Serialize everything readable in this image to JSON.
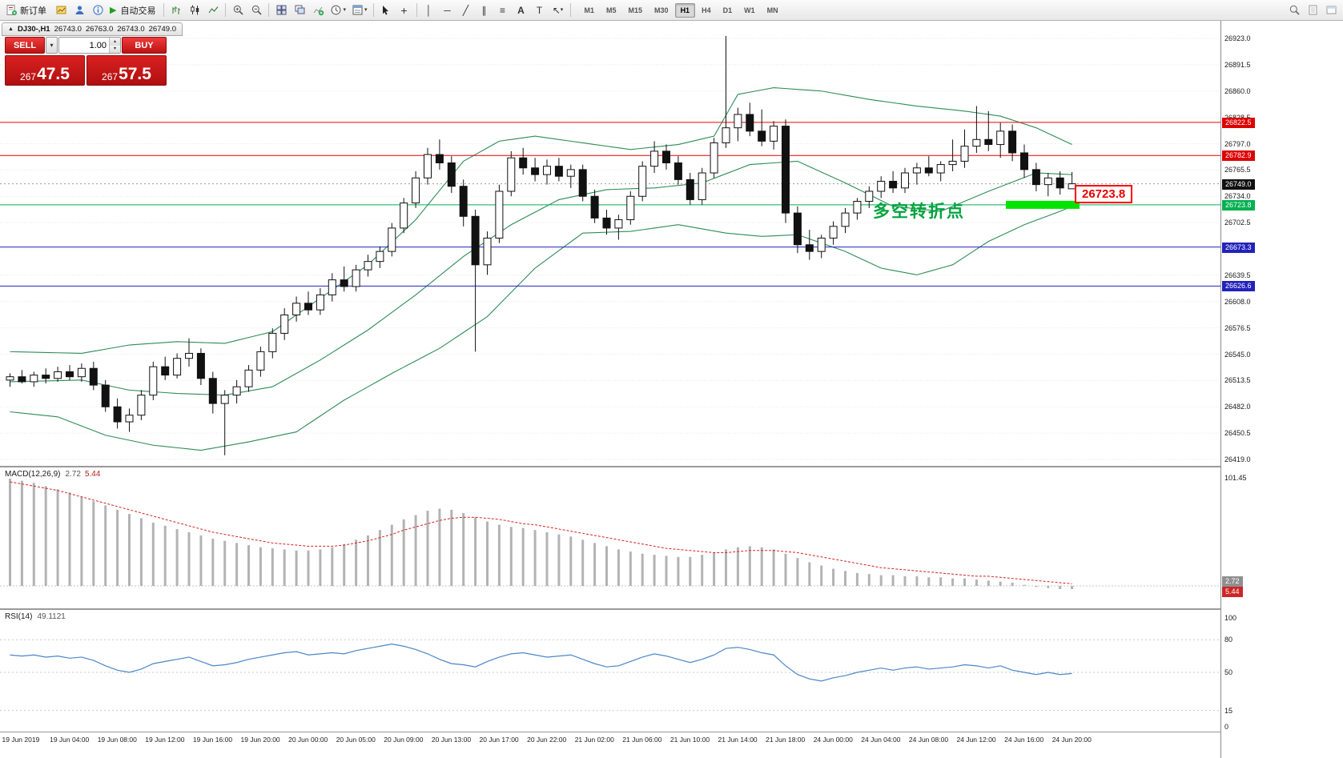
{
  "icons": {
    "play": "▶",
    "caret_down": "▾",
    "caret_up": "▴",
    "collapse": "▲",
    "crosshair": "+",
    "vline": "│",
    "hline": "─",
    "trendline": "╱",
    "channel": "∥",
    "fibonacci": "≡",
    "text_tool": "A",
    "label_tool": "T",
    "arrow_tool": "↖"
  },
  "toolbar": {
    "new_order": "新订单",
    "auto_trading": "自动交易",
    "timeframes": [
      "M1",
      "M5",
      "M15",
      "M30",
      "H1",
      "H4",
      "D1",
      "W1",
      "MN"
    ],
    "active_timeframe": "H1"
  },
  "chart": {
    "tab": "DJ30-,H1",
    "open": "26743.0",
    "high": "26763.0",
    "low": "26743.0",
    "close": "26749.0"
  },
  "trade": {
    "sell": "SELL",
    "buy": "BUY",
    "volume": "1.00",
    "sell_price": "26747.5",
    "buy_price": "26757.5"
  },
  "annotation": {
    "text": "多空转折点",
    "callout": "26723.8",
    "price": 26723.8
  },
  "levels": [
    {
      "price": 26822.5,
      "color": "#ee0000",
      "style": "solid"
    },
    {
      "price": 26782.9,
      "color": "#ee0000",
      "style": "solid"
    },
    {
      "price": 26749.0,
      "color": "#999999",
      "style": "dotted"
    },
    {
      "price": 26723.8,
      "color": "#00b050",
      "style": "solid"
    },
    {
      "price": 26673.3,
      "color": "#2222bb",
      "style": "solid"
    },
    {
      "price": 26626.6,
      "color": "#2222bb",
      "style": "solid"
    }
  ],
  "price_axis": {
    "ticks": [
      26923,
      26891.5,
      26860,
      26828.5,
      26797,
      26765.5,
      26734,
      26702.5,
      26671,
      26639.5,
      26608,
      26576.5,
      26545,
      26513.5,
      26482,
      26450.5,
      26419
    ],
    "badges": [
      {
        "price": 26822.5,
        "text": "26822.5",
        "bg": "#dd0000"
      },
      {
        "price": 26782.9,
        "text": "26782.9",
        "bg": "#dd0000"
      },
      {
        "price": 26749.0,
        "text": "26749.0",
        "bg": "#101010"
      },
      {
        "price": 26723.8,
        "text": "26723.8",
        "bg": "#00b050"
      },
      {
        "price": 26673.3,
        "text": "26673.3",
        "bg": "#2222bb"
      },
      {
        "price": 26626.6,
        "text": "26626.6",
        "bg": "#2222bb"
      }
    ]
  },
  "macd": {
    "name": "MACD(12,26,9)",
    "value_main": "2.72",
    "value_signal": "5.44",
    "axis_max": "101.45"
  },
  "rsi": {
    "name": "RSI(14)",
    "value": "49.1121",
    "axis": [
      100,
      80,
      50,
      15,
      0
    ],
    "levels": [
      80,
      50,
      15
    ]
  },
  "chart_data": {
    "type": "candlestick",
    "symbol": "DJ30-",
    "timeframe": "H1",
    "time_labels": [
      "19 Jun 2019",
      "19 Jun 04:00",
      "19 Jun 08:00",
      "19 Jun 12:00",
      "19 Jun 16:00",
      "19 Jun 20:00",
      "20 Jun 00:00",
      "20 Jun 05:00",
      "20 Jun 09:00",
      "20 Jun 13:00",
      "20 Jun 17:00",
      "20 Jun 22:00",
      "21 Jun 02:00",
      "21 Jun 06:00",
      "21 Jun 10:00",
      "21 Jun 14:00",
      "21 Jun 18:00",
      "24 Jun 00:00",
      "24 Jun 04:00",
      "24 Jun 08:00",
      "24 Jun 12:00",
      "24 Jun 16:00",
      "24 Jun 20:00"
    ],
    "candles": [
      [
        26514,
        26522,
        26506,
        26518
      ],
      [
        26518,
        26526,
        26510,
        26512
      ],
      [
        26512,
        26524,
        26506,
        26520
      ],
      [
        26520,
        26528,
        26510,
        26516
      ],
      [
        26516,
        26530,
        26512,
        26524
      ],
      [
        26524,
        26532,
        26514,
        26518
      ],
      [
        26518,
        26534,
        26512,
        26528
      ],
      [
        26528,
        26536,
        26502,
        26508
      ],
      [
        26508,
        26514,
        26476,
        26482
      ],
      [
        26482,
        26492,
        26456,
        26464
      ],
      [
        26464,
        26480,
        26452,
        26472
      ],
      [
        26472,
        26502,
        26466,
        26496
      ],
      [
        26496,
        26536,
        26490,
        26530
      ],
      [
        26530,
        26542,
        26514,
        26520
      ],
      [
        26520,
        26546,
        26516,
        26540
      ],
      [
        26540,
        26564,
        26530,
        26546
      ],
      [
        26546,
        26552,
        26508,
        26516
      ],
      [
        26516,
        26524,
        26474,
        26486
      ],
      [
        26486,
        26502,
        26424,
        26496
      ],
      [
        26496,
        26514,
        26486,
        26506
      ],
      [
        26506,
        26532,
        26500,
        26526
      ],
      [
        26526,
        26554,
        26518,
        26548
      ],
      [
        26548,
        26576,
        26540,
        26570
      ],
      [
        26570,
        26600,
        26562,
        26592
      ],
      [
        26592,
        26614,
        26584,
        26606
      ],
      [
        26606,
        26620,
        26592,
        26598
      ],
      [
        26598,
        26624,
        26592,
        26616
      ],
      [
        26616,
        26642,
        26608,
        26634
      ],
      [
        26634,
        26650,
        26620,
        26626
      ],
      [
        26626,
        26652,
        26620,
        26646
      ],
      [
        26646,
        26664,
        26638,
        26656
      ],
      [
        26656,
        26674,
        26648,
        26668
      ],
      [
        26668,
        26702,
        26662,
        26696
      ],
      [
        26696,
        26732,
        26690,
        26726
      ],
      [
        26726,
        26764,
        26720,
        26756
      ],
      [
        26756,
        26792,
        26748,
        26784
      ],
      [
        26784,
        26802,
        26766,
        26774
      ],
      [
        26774,
        26782,
        26738,
        26746
      ],
      [
        26746,
        26754,
        26698,
        26710
      ],
      [
        26710,
        26718,
        26548,
        26652
      ],
      [
        26652,
        26692,
        26640,
        26684
      ],
      [
        26684,
        26748,
        26678,
        26740
      ],
      [
        26740,
        26788,
        26734,
        26780
      ],
      [
        26780,
        26792,
        26760,
        26768
      ],
      [
        26768,
        26780,
        26752,
        26760
      ],
      [
        26760,
        26778,
        26748,
        26770
      ],
      [
        26770,
        26780,
        26752,
        26758
      ],
      [
        26758,
        26772,
        26744,
        26766
      ],
      [
        26766,
        26772,
        26728,
        26734
      ],
      [
        26734,
        26742,
        26702,
        26708
      ],
      [
        26708,
        26718,
        26688,
        26696
      ],
      [
        26696,
        26712,
        26682,
        26706
      ],
      [
        26706,
        26740,
        26700,
        26734
      ],
      [
        26734,
        26776,
        26728,
        26770
      ],
      [
        26770,
        26800,
        26762,
        26788
      ],
      [
        26788,
        26796,
        26766,
        26774
      ],
      [
        26774,
        26782,
        26748,
        26754
      ],
      [
        26754,
        26762,
        26724,
        26730
      ],
      [
        26730,
        26768,
        26724,
        26762
      ],
      [
        26762,
        26804,
        26756,
        26798
      ],
      [
        26798,
        26926,
        26792,
        26816
      ],
      [
        26816,
        26840,
        26800,
        26832
      ],
      [
        26832,
        26846,
        26806,
        26812
      ],
      [
        26812,
        26838,
        26794,
        26800
      ],
      [
        26800,
        26824,
        26790,
        26818
      ],
      [
        26818,
        26826,
        26702,
        26714
      ],
      [
        26714,
        26722,
        26666,
        26676
      ],
      [
        26676,
        26694,
        26658,
        26668
      ],
      [
        26668,
        26688,
        26660,
        26684
      ],
      [
        26684,
        26704,
        26676,
        26698
      ],
      [
        26698,
        26720,
        26690,
        26714
      ],
      [
        26714,
        26732,
        26706,
        26728
      ],
      [
        26728,
        26746,
        26720,
        26740
      ],
      [
        26740,
        26758,
        26732,
        26752
      ],
      [
        26752,
        26764,
        26738,
        26744
      ],
      [
        26744,
        26768,
        26738,
        26762
      ],
      [
        26762,
        26774,
        26748,
        26768
      ],
      [
        26768,
        26782,
        26758,
        26762
      ],
      [
        26762,
        26776,
        26752,
        26772
      ],
      [
        26772,
        26802,
        26764,
        26776
      ],
      [
        26776,
        26814,
        26768,
        26794
      ],
      [
        26794,
        26842,
        26786,
        26802
      ],
      [
        26802,
        26836,
        26788,
        26796
      ],
      [
        26796,
        26822,
        26780,
        26812
      ],
      [
        26812,
        26820,
        26776,
        26786
      ],
      [
        26786,
        26796,
        26756,
        26766
      ],
      [
        26766,
        26774,
        26740,
        26748
      ],
      [
        26748,
        26762,
        26734,
        26756
      ],
      [
        26756,
        26764,
        26736,
        26744
      ],
      [
        26743,
        26763,
        26743,
        26749
      ]
    ],
    "bollinger": {
      "upper": [
        [
          0,
          26548
        ],
        [
          6,
          26546
        ],
        [
          10,
          26556
        ],
        [
          14,
          26560
        ],
        [
          18,
          26558
        ],
        [
          22,
          26572
        ],
        [
          26,
          26612
        ],
        [
          30,
          26652
        ],
        [
          34,
          26706
        ],
        [
          38,
          26776
        ],
        [
          41,
          26800
        ],
        [
          44,
          26806
        ],
        [
          48,
          26798
        ],
        [
          52,
          26790
        ],
        [
          56,
          26796
        ],
        [
          59,
          26806
        ],
        [
          61,
          26856
        ],
        [
          64,
          26864
        ],
        [
          68,
          26860
        ],
        [
          72,
          26850
        ],
        [
          76,
          26842
        ],
        [
          80,
          26836
        ],
        [
          83,
          26830
        ],
        [
          86,
          26816
        ],
        [
          89,
          26796
        ]
      ],
      "middle": [
        [
          0,
          26512
        ],
        [
          6,
          26514
        ],
        [
          10,
          26502
        ],
        [
          14,
          26498
        ],
        [
          18,
          26496
        ],
        [
          22,
          26506
        ],
        [
          26,
          26538
        ],
        [
          30,
          26574
        ],
        [
          34,
          26616
        ],
        [
          38,
          26662
        ],
        [
          42,
          26700
        ],
        [
          46,
          26730
        ],
        [
          50,
          26742
        ],
        [
          54,
          26744
        ],
        [
          58,
          26750
        ],
        [
          62,
          26772
        ],
        [
          66,
          26776
        ],
        [
          70,
          26750
        ],
        [
          74,
          26722
        ],
        [
          78,
          26716
        ],
        [
          82,
          26740
        ],
        [
          86,
          26762
        ],
        [
          89,
          26760
        ]
      ],
      "lower": [
        [
          0,
          26476
        ],
        [
          4,
          26470
        ],
        [
          8,
          26448
        ],
        [
          12,
          26436
        ],
        [
          16,
          26430
        ],
        [
          20,
          26440
        ],
        [
          24,
          26452
        ],
        [
          28,
          26490
        ],
        [
          32,
          26522
        ],
        [
          36,
          26552
        ],
        [
          40,
          26590
        ],
        [
          44,
          26648
        ],
        [
          48,
          26690
        ],
        [
          52,
          26692
        ],
        [
          56,
          26700
        ],
        [
          60,
          26690
        ],
        [
          63,
          26686
        ],
        [
          66,
          26688
        ],
        [
          70,
          26668
        ],
        [
          73,
          26648
        ],
        [
          76,
          26640
        ],
        [
          79,
          26652
        ],
        [
          82,
          26680
        ],
        [
          85,
          26700
        ],
        [
          88,
          26716
        ],
        [
          89,
          26722
        ]
      ]
    },
    "macd_histogram": [
      100,
      98,
      96,
      93,
      90,
      87,
      83,
      79,
      75,
      71,
      67,
      63,
      59,
      56,
      53,
      50,
      47,
      44,
      42,
      40,
      38,
      36,
      35,
      34,
      33,
      33,
      34,
      36,
      39,
      43,
      47,
      52,
      57,
      62,
      66,
      70,
      72,
      71,
      68,
      64,
      60,
      57,
      55,
      54,
      52,
      50,
      48,
      46,
      43,
      40,
      37,
      34,
      32,
      30,
      29,
      28,
      27,
      27,
      29,
      31,
      34,
      36,
      37,
      36,
      34,
      30,
      26,
      22,
      19,
      16,
      14,
      12,
      11,
      10,
      10,
      9,
      9,
      8,
      8,
      7,
      7,
      6,
      5,
      4,
      3,
      1,
      -1,
      -2,
      -3,
      -3
    ],
    "macd_signal": [
      97,
      95,
      93,
      91,
      89,
      86,
      83,
      80,
      77,
      74,
      71,
      68,
      65,
      62,
      59,
      56,
      53,
      50,
      48,
      46,
      44,
      42,
      40,
      39,
      38,
      37,
      37,
      37,
      38,
      40,
      42,
      45,
      48,
      52,
      55,
      58,
      61,
      63,
      64,
      64,
      63,
      62,
      60,
      58,
      57,
      55,
      53,
      51,
      49,
      47,
      45,
      43,
      41,
      39,
      37,
      35,
      34,
      33,
      32,
      31,
      31,
      32,
      33,
      33,
      33,
      32,
      31,
      29,
      27,
      25,
      23,
      21,
      19,
      17,
      16,
      15,
      14,
      13,
      12,
      11,
      10,
      9,
      9,
      8,
      7,
      6,
      5,
      4,
      3,
      2
    ],
    "rsi": [
      66,
      65,
      66,
      64,
      65,
      63,
      64,
      61,
      56,
      52,
      50,
      53,
      58,
      60,
      62,
      64,
      60,
      56,
      57,
      59,
      62,
      64,
      66,
      68,
      69,
      66,
      67,
      68,
      67,
      70,
      72,
      74,
      76,
      74,
      71,
      67,
      62,
      58,
      57,
      55,
      60,
      64,
      67,
      68,
      66,
      64,
      65,
      66,
      62,
      58,
      55,
      56,
      60,
      64,
      67,
      65,
      62,
      59,
      62,
      66,
      72,
      73,
      71,
      68,
      66,
      56,
      48,
      44,
      42,
      45,
      47,
      50,
      52,
      54,
      52,
      54,
      55,
      53,
      54,
      55,
      57,
      56,
      54,
      56,
      52,
      50,
      48,
      50,
      48,
      49
    ]
  }
}
